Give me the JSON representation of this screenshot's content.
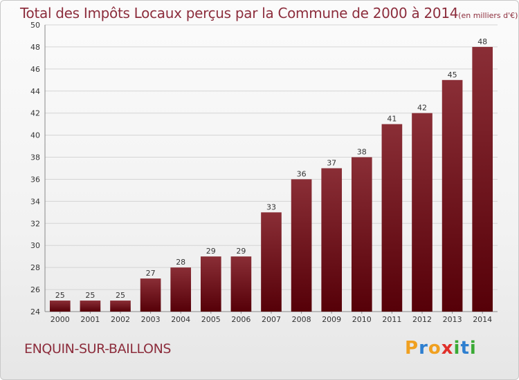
{
  "header": {
    "title": "Total des Impôts Locaux perçus par la Commune de 2000 à 2014",
    "unit": "(en milliers d'€)"
  },
  "footer": {
    "commune": "ENQUIN-SUR-BAILLONS",
    "logo_text": "Proxiti",
    "logo_letters": [
      {
        "ch": "P",
        "color": "#f0a020"
      },
      {
        "ch": "r",
        "color": "#2e7fd0"
      },
      {
        "ch": "o",
        "color": "#f0a020"
      },
      {
        "ch": "x",
        "color": "#e0302a"
      },
      {
        "ch": "i",
        "color": "#3aaa35"
      },
      {
        "ch": "t",
        "color": "#2e7fd0"
      },
      {
        "ch": "i",
        "color": "#3aaa35"
      }
    ]
  },
  "colors": {
    "bar_top": "#8a2e36",
    "bar_bottom": "#560008",
    "grid": "#d4d4d4",
    "title": "#8c2d3c"
  },
  "chart_data": {
    "type": "bar",
    "title": "Total des Impôts Locaux perçus par la Commune de 2000 à 2014",
    "xlabel": "",
    "ylabel": "en milliers d'€",
    "categories": [
      "2000",
      "2001",
      "2002",
      "2003",
      "2004",
      "2005",
      "2006",
      "2007",
      "2008",
      "2009",
      "2010",
      "2011",
      "2012",
      "2013",
      "2014"
    ],
    "values": [
      25,
      25,
      25,
      27,
      28,
      29,
      29,
      33,
      36,
      37,
      38,
      41,
      42,
      45,
      48
    ],
    "ylim": [
      24,
      50
    ],
    "yticks": [
      24,
      26,
      28,
      30,
      32,
      34,
      36,
      38,
      40,
      42,
      44,
      46,
      48,
      50
    ],
    "grid": true
  }
}
